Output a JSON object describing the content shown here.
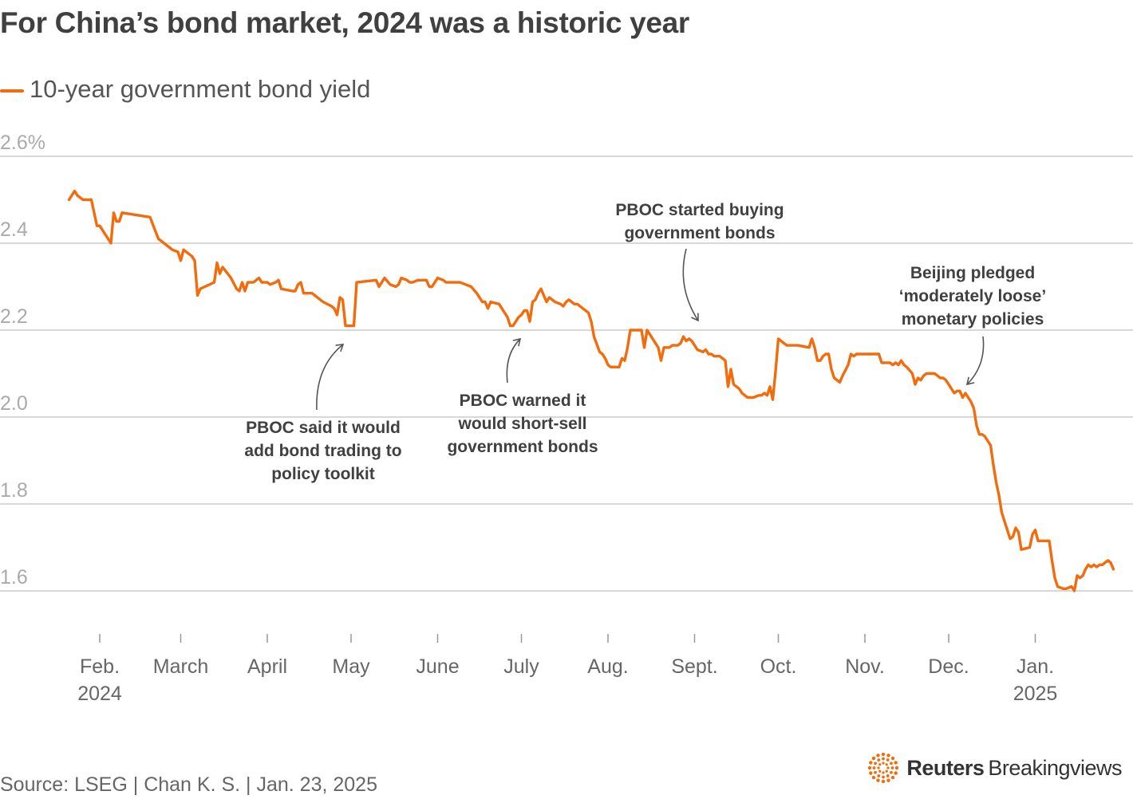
{
  "title": "For China’s bond market, 2024 was a historic year",
  "colors": {
    "line": "#f26b0c",
    "grid": "#cccccc",
    "text": "#404040",
    "arrow": "#555555"
  },
  "chart_data": {
    "type": "line",
    "title": "For China’s bond market, 2024 was a historic year",
    "legend": "10-year government bond yield",
    "legend_position": "top-left",
    "ylabel": "",
    "xlabel": "",
    "ylim": [
      1.6,
      2.6
    ],
    "y_ticks": [
      {
        "value": 2.6,
        "label": "2.6%"
      },
      {
        "value": 2.4,
        "label": "2.4"
      },
      {
        "value": 2.2,
        "label": "2.2"
      },
      {
        "value": 2.0,
        "label": "2.0"
      },
      {
        "value": 1.8,
        "label": "1.8"
      },
      {
        "value": 1.6,
        "label": "1.6"
      }
    ],
    "x_ticks": [
      {
        "day": 1,
        "label": "Feb.",
        "sub": "2024"
      },
      {
        "day": 30,
        "label": "March"
      },
      {
        "day": 61,
        "label": "April"
      },
      {
        "day": 91,
        "label": "May"
      },
      {
        "day": 122,
        "label": "June"
      },
      {
        "day": 152,
        "label": "July"
      },
      {
        "day": 183,
        "label": "Aug."
      },
      {
        "day": 214,
        "label": "Sept."
      },
      {
        "day": 244,
        "label": "Oct."
      },
      {
        "day": 275,
        "label": "Nov."
      },
      {
        "day": 305,
        "label": "Dec."
      },
      {
        "day": 336,
        "label": "Jan.",
        "sub": "2025"
      }
    ],
    "series": [
      {
        "name": "10-year government bond yield",
        "points": [
          [
            -10,
            2.5
          ],
          [
            -8,
            2.52
          ],
          [
            -7,
            2.51
          ],
          [
            -5,
            2.5
          ],
          [
            -2,
            2.5
          ],
          [
            0,
            2.44
          ],
          [
            1,
            2.44
          ],
          [
            4,
            2.41
          ],
          [
            5,
            2.4
          ],
          [
            6,
            2.47
          ],
          [
            7,
            2.45
          ],
          [
            8,
            2.45
          ],
          [
            9,
            2.47
          ],
          [
            19,
            2.46
          ],
          [
            22,
            2.41
          ],
          [
            26,
            2.39
          ],
          [
            27,
            2.385
          ],
          [
            29,
            2.38
          ],
          [
            30,
            2.36
          ],
          [
            31,
            2.385
          ],
          [
            34,
            2.37
          ],
          [
            35,
            2.36
          ],
          [
            36,
            2.28
          ],
          [
            37,
            2.295
          ],
          [
            42,
            2.31
          ],
          [
            43,
            2.355
          ],
          [
            44,
            2.33
          ],
          [
            45,
            2.345
          ],
          [
            48,
            2.32
          ],
          [
            50,
            2.295
          ],
          [
            51,
            2.29
          ],
          [
            52,
            2.31
          ],
          [
            53,
            2.29
          ],
          [
            54,
            2.31
          ],
          [
            56,
            2.31
          ],
          [
            58,
            2.32
          ],
          [
            59,
            2.31
          ],
          [
            60,
            2.31
          ],
          [
            61,
            2.31
          ],
          [
            62,
            2.305
          ],
          [
            64,
            2.31
          ],
          [
            65,
            2.315
          ],
          [
            66,
            2.295
          ],
          [
            70,
            2.29
          ],
          [
            71,
            2.29
          ],
          [
            72,
            2.305
          ],
          [
            73,
            2.31
          ],
          [
            74,
            2.285
          ],
          [
            75,
            2.285
          ],
          [
            77,
            2.285
          ],
          [
            78,
            2.28
          ],
          [
            80,
            2.27
          ],
          [
            81,
            2.265
          ],
          [
            84,
            2.255
          ],
          [
            85,
            2.25
          ],
          [
            86,
            2.235
          ],
          [
            87,
            2.275
          ],
          [
            88,
            2.27
          ],
          [
            89,
            2.21
          ],
          [
            90,
            2.21
          ],
          [
            91,
            2.21
          ],
          [
            92,
            2.21
          ],
          [
            93,
            2.31
          ],
          [
            100,
            2.315
          ],
          [
            101,
            2.3
          ],
          [
            102,
            2.31
          ],
          [
            103,
            2.32
          ],
          [
            105,
            2.305
          ],
          [
            107,
            2.3
          ],
          [
            108,
            2.305
          ],
          [
            109,
            2.32
          ],
          [
            111,
            2.315
          ],
          [
            112,
            2.31
          ],
          [
            113,
            2.31
          ],
          [
            115,
            2.315
          ],
          [
            117,
            2.315
          ],
          [
            118,
            2.315
          ],
          [
            119,
            2.3
          ],
          [
            120,
            2.3
          ],
          [
            121,
            2.31
          ],
          [
            122,
            2.32
          ],
          [
            124,
            2.315
          ],
          [
            125,
            2.31
          ],
          [
            127,
            2.31
          ],
          [
            129,
            2.31
          ],
          [
            130,
            2.31
          ],
          [
            132,
            2.305
          ],
          [
            134,
            2.3
          ],
          [
            136,
            2.285
          ],
          [
            138,
            2.265
          ],
          [
            139,
            2.265
          ],
          [
            140,
            2.25
          ],
          [
            141,
            2.265
          ],
          [
            144,
            2.26
          ],
          [
            145,
            2.25
          ],
          [
            147,
            2.23
          ],
          [
            148,
            2.21
          ],
          [
            149,
            2.21
          ],
          [
            150,
            2.22
          ],
          [
            151,
            2.23
          ],
          [
            152,
            2.235
          ],
          [
            153,
            2.245
          ],
          [
            154,
            2.245
          ],
          [
            155,
            2.22
          ],
          [
            156,
            2.265
          ],
          [
            157,
            2.27
          ],
          [
            158,
            2.285
          ],
          [
            159,
            2.295
          ],
          [
            160,
            2.28
          ],
          [
            161,
            2.265
          ],
          [
            162,
            2.275
          ],
          [
            164,
            2.265
          ],
          [
            166,
            2.26
          ],
          [
            167,
            2.255
          ],
          [
            168,
            2.265
          ],
          [
            169,
            2.27
          ],
          [
            170,
            2.265
          ],
          [
            171,
            2.26
          ],
          [
            172,
            2.26
          ],
          [
            174,
            2.25
          ],
          [
            176,
            2.24
          ],
          [
            177,
            2.22
          ],
          [
            178,
            2.185
          ],
          [
            180,
            2.15
          ],
          [
            181,
            2.145
          ],
          [
            182,
            2.135
          ],
          [
            183,
            2.12
          ],
          [
            184,
            2.115
          ],
          [
            185,
            2.115
          ],
          [
            186,
            2.115
          ],
          [
            187,
            2.115
          ],
          [
            188,
            2.135
          ],
          [
            189,
            2.13
          ],
          [
            190,
            2.16
          ],
          [
            191,
            2.2
          ],
          [
            195,
            2.2
          ],
          [
            196,
            2.16
          ],
          [
            197,
            2.2
          ],
          [
            199,
            2.18
          ],
          [
            200,
            2.17
          ],
          [
            201,
            2.16
          ],
          [
            202,
            2.13
          ],
          [
            203,
            2.16
          ],
          [
            205,
            2.16
          ],
          [
            206,
            2.165
          ],
          [
            207,
            2.165
          ],
          [
            208,
            2.165
          ],
          [
            209,
            2.17
          ],
          [
            210,
            2.185
          ],
          [
            211,
            2.175
          ],
          [
            212,
            2.18
          ],
          [
            213,
            2.175
          ],
          [
            215,
            2.155
          ],
          [
            217,
            2.15
          ],
          [
            218,
            2.155
          ],
          [
            219,
            2.145
          ],
          [
            220,
            2.145
          ],
          [
            221,
            2.14
          ],
          [
            223,
            2.14
          ],
          [
            224,
            2.135
          ],
          [
            225,
            2.13
          ],
          [
            226,
            2.07
          ],
          [
            227,
            2.11
          ],
          [
            228,
            2.075
          ],
          [
            230,
            2.065
          ],
          [
            231,
            2.055
          ],
          [
            232,
            2.05
          ],
          [
            233,
            2.045
          ],
          [
            235,
            2.045
          ],
          [
            237,
            2.05
          ],
          [
            238,
            2.05
          ],
          [
            239,
            2.055
          ],
          [
            240,
            2.05
          ],
          [
            241,
            2.07
          ],
          [
            242,
            2.04
          ],
          [
            243,
            2.105
          ],
          [
            244,
            2.18
          ],
          [
            245,
            2.175
          ],
          [
            247,
            2.165
          ],
          [
            250,
            2.165
          ],
          [
            251,
            2.165
          ],
          [
            255,
            2.16
          ],
          [
            256,
            2.18
          ],
          [
            257,
            2.16
          ],
          [
            258,
            2.13
          ],
          [
            259,
            2.13
          ],
          [
            260,
            2.14
          ],
          [
            261,
            2.145
          ],
          [
            262,
            2.145
          ],
          [
            263,
            2.11
          ],
          [
            264,
            2.09
          ],
          [
            265,
            2.085
          ],
          [
            266,
            2.08
          ],
          [
            267,
            2.095
          ],
          [
            269,
            2.12
          ],
          [
            270,
            2.145
          ],
          [
            271,
            2.14
          ],
          [
            272,
            2.145
          ],
          [
            280,
            2.145
          ],
          [
            281,
            2.125
          ],
          [
            282,
            2.125
          ],
          [
            283,
            2.125
          ],
          [
            284,
            2.125
          ],
          [
            285,
            2.12
          ],
          [
            286,
            2.125
          ],
          [
            287,
            2.12
          ],
          [
            288,
            2.13
          ],
          [
            289,
            2.12
          ],
          [
            290,
            2.115
          ],
          [
            292,
            2.1
          ],
          [
            293,
            2.075
          ],
          [
            294,
            2.09
          ],
          [
            295,
            2.085
          ],
          [
            296,
            2.095
          ],
          [
            297,
            2.1
          ],
          [
            298,
            2.1
          ],
          [
            300,
            2.1
          ],
          [
            301,
            2.095
          ],
          [
            302,
            2.09
          ],
          [
            303,
            2.09
          ],
          [
            304,
            2.085
          ],
          [
            305,
            2.075
          ],
          [
            306,
            2.065
          ],
          [
            307,
            2.055
          ],
          [
            308,
            2.06
          ],
          [
            309,
            2.06
          ],
          [
            310,
            2.045
          ],
          [
            311,
            2.055
          ],
          [
            312,
            2.045
          ],
          [
            313,
            2.035
          ],
          [
            314,
            2.02
          ],
          [
            315,
            1.98
          ],
          [
            316,
            1.96
          ],
          [
            317,
            1.96
          ],
          [
            318,
            1.955
          ],
          [
            319,
            1.945
          ],
          [
            320,
            1.935
          ],
          [
            321,
            1.89
          ],
          [
            322,
            1.85
          ],
          [
            323,
            1.82
          ],
          [
            324,
            1.78
          ],
          [
            325,
            1.76
          ],
          [
            327,
            1.72
          ],
          [
            328,
            1.725
          ],
          [
            329,
            1.745
          ],
          [
            330,
            1.735
          ],
          [
            331,
            1.695
          ],
          [
            334,
            1.7
          ],
          [
            335,
            1.73
          ],
          [
            336,
            1.74
          ],
          [
            337,
            1.715
          ],
          [
            338,
            1.715
          ],
          [
            341,
            1.715
          ],
          [
            342,
            1.67
          ],
          [
            343,
            1.63
          ],
          [
            344,
            1.61
          ],
          [
            346,
            1.605
          ],
          [
            347,
            1.605
          ],
          [
            349,
            1.61
          ],
          [
            350,
            1.6
          ],
          [
            351,
            1.635
          ],
          [
            352,
            1.63
          ],
          [
            353,
            1.635
          ],
          [
            354,
            1.65
          ],
          [
            355,
            1.66
          ],
          [
            356,
            1.655
          ],
          [
            357,
            1.66
          ],
          [
            358,
            1.655
          ],
          [
            359,
            1.66
          ],
          [
            360,
            1.66
          ],
          [
            361,
            1.665
          ],
          [
            362,
            1.67
          ],
          [
            363,
            1.665
          ],
          [
            364,
            1.65
          ]
        ]
      }
    ],
    "annotations": [
      {
        "id": "ann1",
        "text": "PBOC said it would\nadd bond trading to\npolicy toolkit",
        "day": 92,
        "value": 2.21
      },
      {
        "id": "ann2",
        "text": "PBOC warned it\nwould short-sell\ngovernment bonds",
        "day": 149,
        "value": 2.21
      },
      {
        "id": "ann3",
        "text": "PBOC started buying\ngovernment bonds",
        "day": 209,
        "value": 2.17
      },
      {
        "id": "ann4",
        "text": "Beijing pledged\n‘moderately loose’\nmonetary policies",
        "day": 309,
        "value": 2.06
      }
    ]
  },
  "legend": {
    "label": "10-year government bond yield"
  },
  "footer": {
    "source": "Source: LSEG | Chan K. S. | Jan. 23, 2025",
    "brand_bold": "Reuters",
    "brand_light": "Breakingviews",
    "logo_icon": "reuters-dots-logo"
  }
}
